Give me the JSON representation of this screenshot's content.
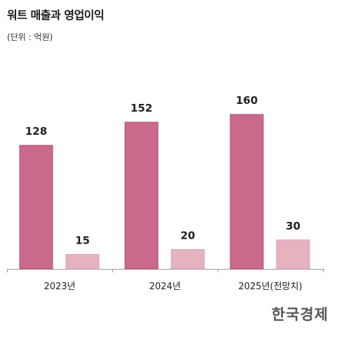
{
  "header": {
    "title": "워트 매출과 영업이익",
    "unit_note": "(단위 : 억원)"
  },
  "brand": {
    "logo_text": "한국경제"
  },
  "colors": {
    "revenue": "#c96a8c",
    "revenue_border": "#b24e75",
    "operating_profit": "#e5b3c0",
    "operating_profit_border": "#d99db0",
    "axis": "#999999"
  },
  "chart_data": {
    "type": "bar",
    "categories": [
      "2023년",
      "2024년",
      "2025년(전망치)"
    ],
    "series": [
      {
        "values": [
          128,
          152,
          160
        ]
      },
      {
        "values": [
          15,
          20,
          30
        ]
      }
    ],
    "ylim": [
      0,
      200
    ],
    "grid": false,
    "legend": "none"
  }
}
